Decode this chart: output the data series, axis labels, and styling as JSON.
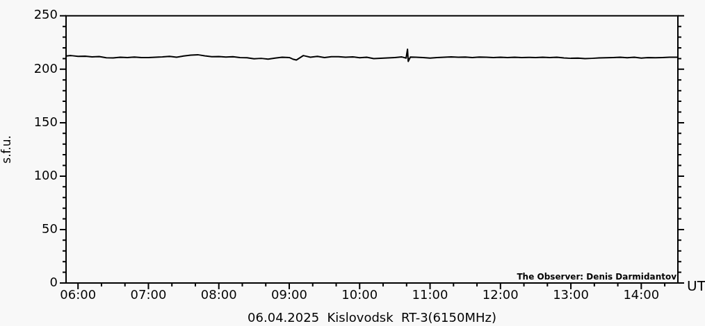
{
  "chart_data": {
    "type": "line",
    "xlabel": "06.04.2025  Kislovodsk  RT-3(6150MHz)",
    "ylabel": "s.f.u.",
    "annotations": [
      "UT",
      "The Observer: Denis Darmidantov"
    ],
    "xlim": [
      5.83,
      14.52
    ],
    "xticks": [
      {
        "value": 6,
        "label": "06:00"
      },
      {
        "value": 6.3333,
        "label": null
      },
      {
        "value": 6.6667,
        "label": null
      },
      {
        "value": 7,
        "label": "07:00"
      },
      {
        "value": 7.3333,
        "label": null
      },
      {
        "value": 7.6667,
        "label": null
      },
      {
        "value": 8,
        "label": "08:00"
      },
      {
        "value": 8.3333,
        "label": null
      },
      {
        "value": 8.6667,
        "label": null
      },
      {
        "value": 9,
        "label": "09:00"
      },
      {
        "value": 9.3333,
        "label": null
      },
      {
        "value": 9.6667,
        "label": null
      },
      {
        "value": 10,
        "label": "10:00"
      },
      {
        "value": 10.3333,
        "label": null
      },
      {
        "value": 10.6667,
        "label": null
      },
      {
        "value": 11,
        "label": "11:00"
      },
      {
        "value": 11.3333,
        "label": null
      },
      {
        "value": 11.6667,
        "label": null
      },
      {
        "value": 12,
        "label": "12:00"
      },
      {
        "value": 12.3333,
        "label": null
      },
      {
        "value": 12.6667,
        "label": null
      },
      {
        "value": 13,
        "label": "13:00"
      },
      {
        "value": 13.3333,
        "label": null
      },
      {
        "value": 13.6667,
        "label": null
      },
      {
        "value": 14,
        "label": "14:00"
      },
      {
        "value": 14.3333,
        "label": null
      }
    ],
    "ylim": [
      0,
      250
    ],
    "yticks": [
      0,
      {
        "value": 10,
        "label": null
      },
      {
        "value": 20,
        "label": null
      },
      {
        "value": 30,
        "label": null
      },
      {
        "value": 40,
        "label": null
      },
      50,
      {
        "value": 60,
        "label": null
      },
      {
        "value": 70,
        "label": null
      },
      {
        "value": 80,
        "label": null
      },
      {
        "value": 90,
        "label": null
      },
      100,
      {
        "value": 110,
        "label": null
      },
      {
        "value": 120,
        "label": null
      },
      {
        "value": 130,
        "label": null
      },
      {
        "value": 140,
        "label": null
      },
      150,
      {
        "value": 160,
        "label": null
      },
      {
        "value": 170,
        "label": null
      },
      {
        "value": 180,
        "label": null
      },
      {
        "value": 190,
        "label": null
      },
      200,
      {
        "value": 210,
        "label": null
      },
      {
        "value": 220,
        "label": null
      },
      {
        "value": 230,
        "label": null
      },
      {
        "value": 240,
        "label": null
      },
      250
    ],
    "grid": false,
    "legend": false,
    "marker": "none",
    "line_style": "solid",
    "series": [
      {
        "color": "#000000",
        "x": [
          5.83,
          5.9,
          6.0,
          6.1,
          6.2,
          6.3,
          6.4,
          6.5,
          6.6,
          6.7,
          6.8,
          6.9,
          7.0,
          7.1,
          7.2,
          7.3,
          7.4,
          7.5,
          7.6,
          7.7,
          7.8,
          7.9,
          8.0,
          8.1,
          8.2,
          8.3,
          8.4,
          8.5,
          8.6,
          8.7,
          8.8,
          8.9,
          9.0,
          9.05,
          9.1,
          9.2,
          9.3,
          9.4,
          9.5,
          9.6,
          9.7,
          9.8,
          9.9,
          10.0,
          10.1,
          10.2,
          10.3,
          10.4,
          10.5,
          10.6,
          10.66,
          10.68,
          10.69,
          10.72,
          10.8,
          10.9,
          11.0,
          11.1,
          11.2,
          11.3,
          11.4,
          11.5,
          11.6,
          11.7,
          11.8,
          11.9,
          12.0,
          12.1,
          12.2,
          12.3,
          12.4,
          12.5,
          12.6,
          12.7,
          12.8,
          12.9,
          13.0,
          13.1,
          13.2,
          13.3,
          13.4,
          13.5,
          13.6,
          13.7,
          13.8,
          13.9,
          14.0,
          14.1,
          14.2,
          14.3,
          14.4,
          14.52
        ],
        "values": [
          212.4,
          212.8,
          212.0,
          212.3,
          211.6,
          211.9,
          210.8,
          210.6,
          211.2,
          211.0,
          211.4,
          211.0,
          210.9,
          211.3,
          211.5,
          212.0,
          211.3,
          212.4,
          213.2,
          213.6,
          212.5,
          211.7,
          211.9,
          211.4,
          211.7,
          211.0,
          210.7,
          209.8,
          210.2,
          209.5,
          210.4,
          211.2,
          211.0,
          209.5,
          208.6,
          212.8,
          211.2,
          212.0,
          211.0,
          211.8,
          211.8,
          211.2,
          211.6,
          210.8,
          211.2,
          210.0,
          210.3,
          210.6,
          211.0,
          211.5,
          210.5,
          218.7,
          207.4,
          211.4,
          211.2,
          211.0,
          210.5,
          211.0,
          211.3,
          211.5,
          211.3,
          211.4,
          211.0,
          211.4,
          211.2,
          211.0,
          211.3,
          211.0,
          211.2,
          210.9,
          211.1,
          211.0,
          211.2,
          211.0,
          211.3,
          210.6,
          210.2,
          210.4,
          209.9,
          210.2,
          210.6,
          210.8,
          211.0,
          211.3,
          210.8,
          211.2,
          210.5,
          210.9,
          210.7,
          211.0,
          211.2,
          211.3
        ]
      }
    ]
  }
}
